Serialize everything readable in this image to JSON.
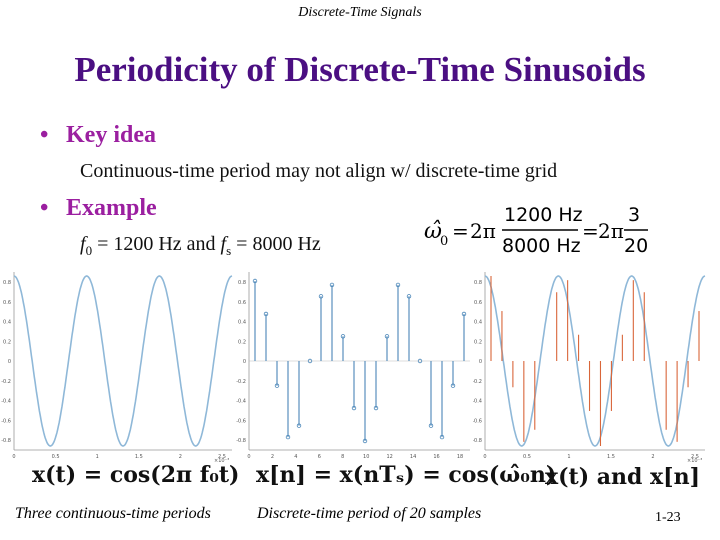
{
  "header": {
    "text": "Discrete-Time Signals"
  },
  "title": "Periodicity of Discrete-Time Sinusoids",
  "bullets": [
    {
      "label": "Key idea",
      "sub": "Continuous-time period may not align w/ discrete-time grid"
    },
    {
      "label": "Example",
      "sub_f0": "f",
      "sub_f0_idx": "0",
      "sub_mid": " = 1200 Hz and ",
      "sub_fs": "f",
      "sub_fs_idx": "s",
      "sub_end": " = 8000 Hz"
    }
  ],
  "equation": {
    "lhs": "ω̂",
    "lhs_idx": "0",
    "two_pi": "2π",
    "frac1_num": "1200 Hz",
    "frac1_den": "8000 Hz",
    "eq": "=",
    "frac2_num": "3",
    "frac2_den": "20"
  },
  "plots": {
    "left": {
      "yticks": [
        "0.8",
        "0.6",
        "0.4",
        "0.2",
        "0",
        "-0.2",
        "-0.4",
        "-0.6",
        "-0.8"
      ],
      "xticks": [
        "0",
        "0.5",
        "1",
        "1.5",
        "2",
        "2.5"
      ],
      "exponent": "×10⁻³",
      "formula": "x(t) = cos(2π f₀t)"
    },
    "middle": {
      "yticks": [
        "0.8",
        "0.6",
        "0.4",
        "0.2",
        "0",
        "-0.2",
        "-0.4",
        "-0.6",
        "-0.8"
      ],
      "xticks": [
        "0",
        "2",
        "4",
        "6",
        "8",
        "10",
        "12",
        "14",
        "16",
        "18"
      ],
      "formula": "x[n] = x(nTₛ) = cos(ω̂₀n)"
    },
    "right": {
      "yticks": [
        "0.8",
        "0.6",
        "0.4",
        "0.2",
        "0",
        "-0.2",
        "-0.4",
        "-0.6",
        "-0.8"
      ],
      "xticks": [
        "0",
        "0.5",
        "1",
        "1.5",
        "2",
        "2.5"
      ],
      "exponent": "×10⁻³",
      "formula": "x(t) and x[n]"
    },
    "colors": {
      "continuous": "#8fb8d8",
      "stem": "#4a86b8",
      "stem_right": "#d9663a"
    }
  },
  "captions": {
    "left": "Three continuous-time periods",
    "middle": "Discrete-time period of 20 samples"
  },
  "page_number": "1-23"
}
